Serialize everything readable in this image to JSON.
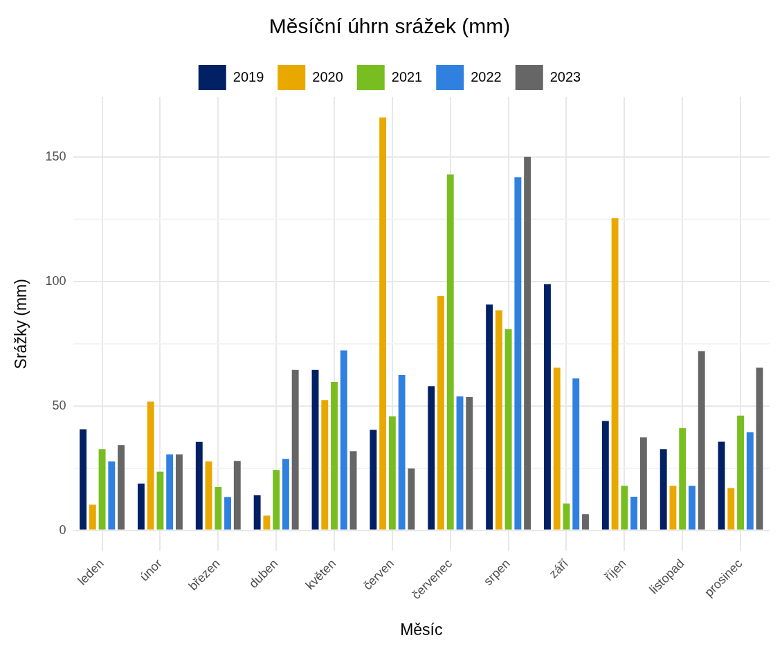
{
  "chart_data": {
    "type": "bar",
    "title": "Měsíční úhrn srážek (mm)",
    "xlabel": "Měsíc",
    "ylabel": "Srážky (mm)",
    "categories": [
      "leden",
      "únor",
      "březen",
      "duben",
      "květen",
      "červen",
      "červenec",
      "srpen",
      "září",
      "říjen",
      "listopad",
      "prosinec"
    ],
    "series": [
      {
        "name": "2019",
        "color": "#022064",
        "values": [
          40.6,
          18.8,
          35.5,
          14.1,
          64.4,
          40.4,
          57.9,
          90.7,
          98.9,
          43.9,
          32.6,
          35.6
        ]
      },
      {
        "name": "2020",
        "color": "#e9a800",
        "values": [
          10.3,
          51.7,
          27.7,
          5.9,
          52.3,
          165.8,
          94.1,
          88.4,
          65.3,
          125.4,
          17.9,
          17.0
        ]
      },
      {
        "name": "2021",
        "color": "#78be20",
        "values": [
          32.6,
          23.6,
          17.4,
          24.3,
          59.6,
          45.8,
          142.9,
          80.8,
          10.8,
          17.9,
          41.1,
          46.1
        ]
      },
      {
        "name": "2022",
        "color": "#3080e0",
        "values": [
          27.7,
          30.5,
          13.4,
          28.7,
          72.3,
          62.4,
          53.8,
          141.8,
          61.0,
          13.5,
          17.9,
          39.4
        ]
      },
      {
        "name": "2023",
        "color": "#666666",
        "values": [
          34.3,
          30.5,
          27.9,
          64.4,
          31.8,
          24.8,
          53.5,
          150.0,
          6.5,
          37.3,
          72.0,
          65.3
        ]
      }
    ],
    "ylim": [
      -8.3,
      174.1
    ],
    "yticks": [
      0,
      {
        "value": 25,
        "label": null
      },
      50,
      {
        "value": 75,
        "label": null
      },
      100,
      {
        "value": 125,
        "label": null
      },
      150
    ],
    "grid": true,
    "legend": "top"
  }
}
